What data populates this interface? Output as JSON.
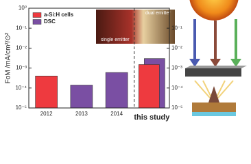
{
  "chart_data": {
    "type": "bar",
    "categories": [
      "2012",
      "2013",
      "2014",
      "this study"
    ],
    "series": [
      {
        "name": "a-Si:H cells",
        "color": "#ee3a3f",
        "values": [
          0.0004,
          null,
          null,
          0.0015
        ]
      },
      {
        "name": "DSC",
        "color": "#7a4fa3",
        "values": [
          null,
          0.00014,
          0.0006,
          0.003
        ]
      }
    ],
    "y_label": "FoM /mA/cm²/⊙²",
    "log_scale": true,
    "ylim": [
      1e-05,
      1
    ],
    "yticks": [
      {
        "value": 1e-05,
        "label": "10⁻⁵"
      },
      {
        "value": 0.0001,
        "label": "10⁻⁴"
      },
      {
        "value": 0.001,
        "label": "10⁻³"
      },
      {
        "value": 0.01,
        "label": "10⁻²"
      },
      {
        "value": 0.1,
        "label": "10⁻¹"
      },
      {
        "value": 1,
        "label": "10⁰"
      }
    ],
    "y2lim": [
      1e-05,
      1
    ],
    "y2ticks": [
      {
        "value": 1e-05,
        "label": "10⁻⁵"
      },
      {
        "value": 0.0001,
        "label": "10⁻⁴"
      },
      {
        "value": 0.001,
        "label": "10⁻³"
      },
      {
        "value": 0.01,
        "label": "10⁻²"
      },
      {
        "value": 0.1,
        "label": "10⁻¹"
      }
    ],
    "annotations": [
      "dual emitter",
      "single emitter"
    ],
    "legend": "upper left"
  }
}
